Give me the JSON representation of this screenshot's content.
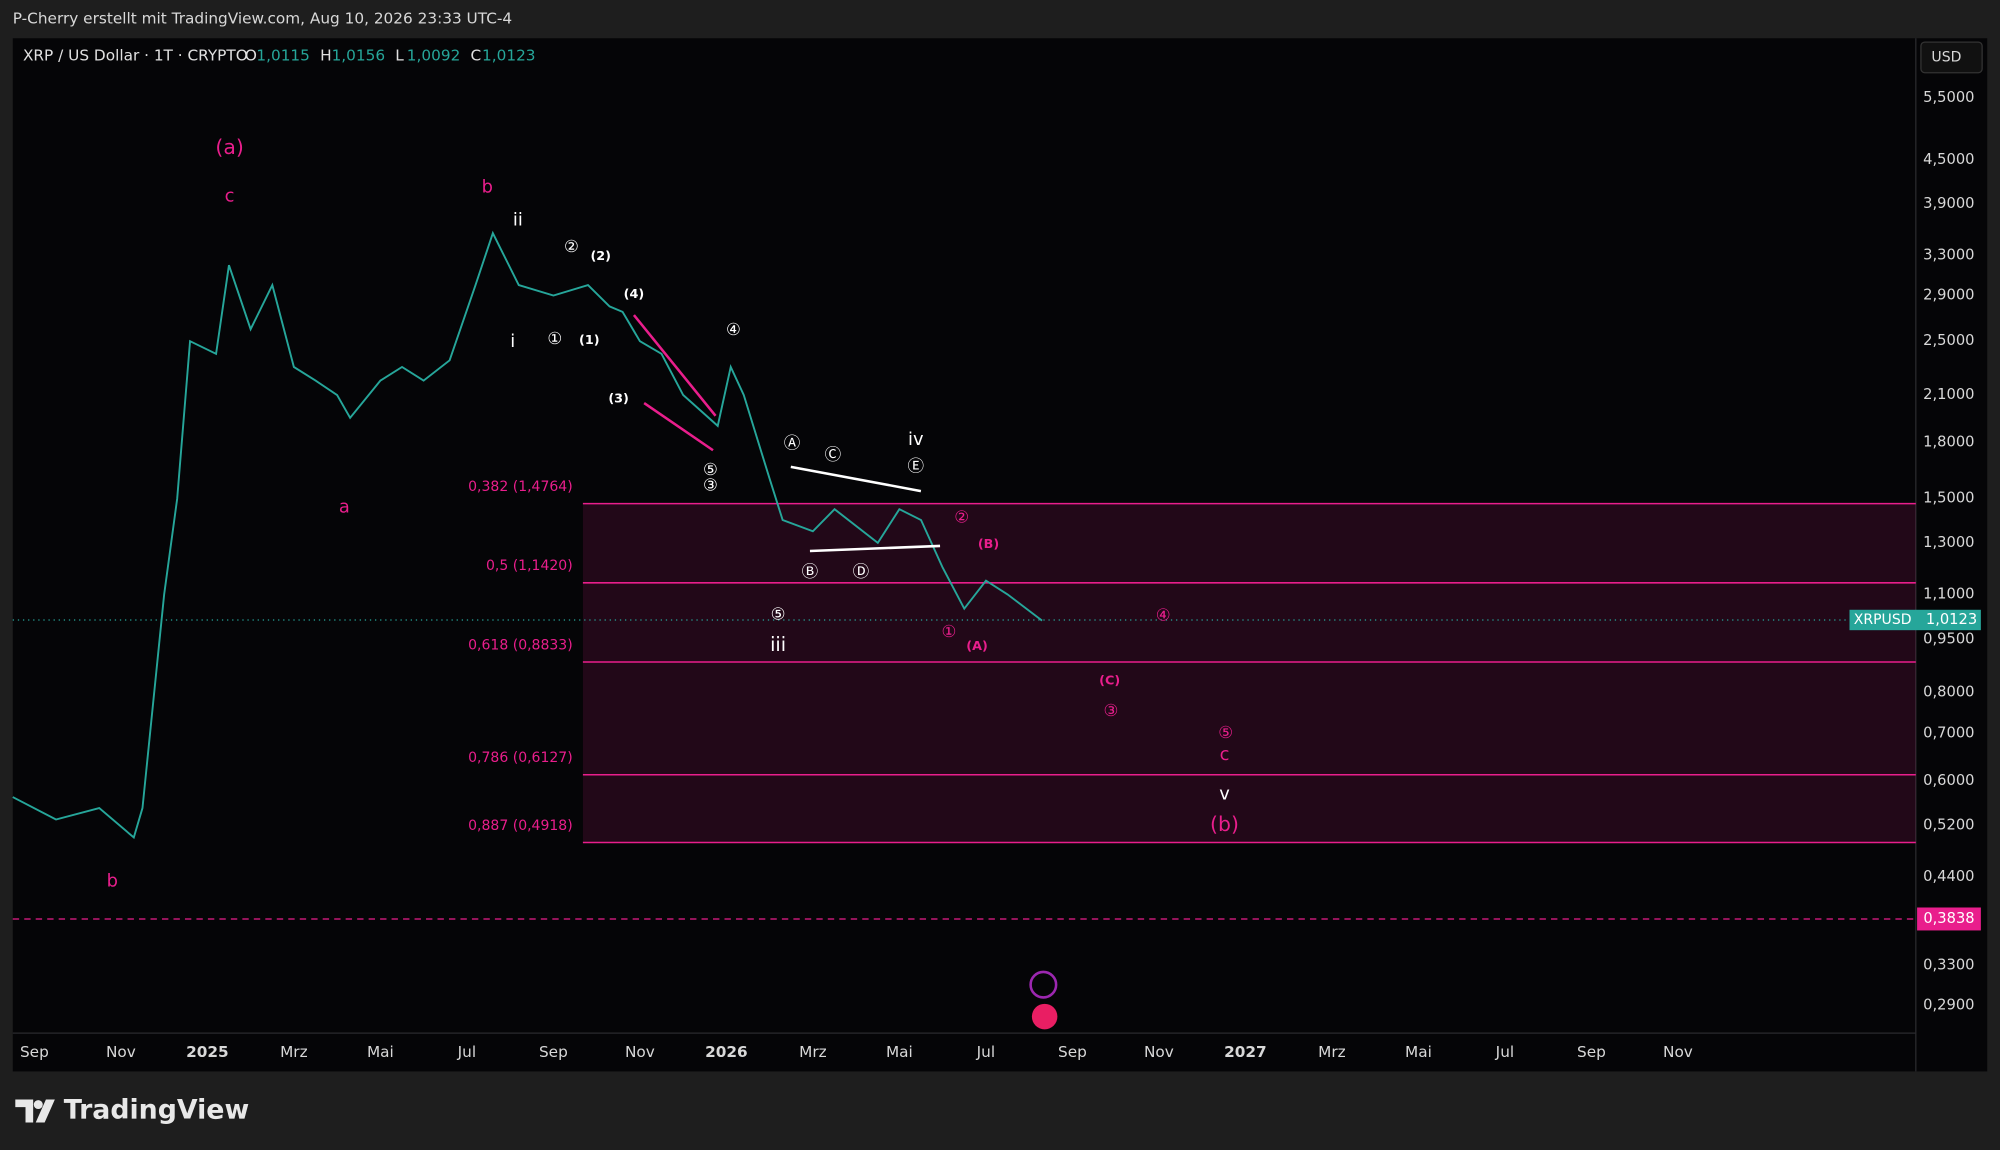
{
  "header": {
    "title": "P-Cherry erstellt mit TradingView.com, Aug 10, 2026 23:33 UTC-4"
  },
  "footer": {
    "brand": "TradingView"
  },
  "chart_data": {
    "type": "line",
    "symbol": "XRP / US Dollar · 1T · CRYPTO",
    "ohlc": [
      {
        "key": "O",
        "value": "1,0115"
      },
      {
        "key": "H",
        "value": "1,0156"
      },
      {
        "key": "L",
        "value": "1,0092"
      },
      {
        "key": "C",
        "value": "1,0123"
      }
    ],
    "currency": "USD",
    "log_scale": true,
    "ylim": [
      0.265,
      6.68
    ],
    "yticks": [
      {
        "value": 5.5,
        "label": "5,5000"
      },
      {
        "value": 4.5,
        "label": "4,5000"
      },
      {
        "value": 3.9,
        "label": "3,9000"
      },
      {
        "value": 3.3,
        "label": "3,3000"
      },
      {
        "value": 2.9,
        "label": "2,9000"
      },
      {
        "value": 2.5,
        "label": "2,5000"
      },
      {
        "value": 2.1,
        "label": "2,1000"
      },
      {
        "value": 1.8,
        "label": "1,8000"
      },
      {
        "value": 1.5,
        "label": "1,5000"
      },
      {
        "value": 1.3,
        "label": "1,3000"
      },
      {
        "value": 1.1,
        "label": "1,1000"
      },
      {
        "value": 0.95,
        "label": "0,9500"
      },
      {
        "value": 0.8,
        "label": "0,8000"
      },
      {
        "value": 0.7,
        "label": "0,7000"
      },
      {
        "value": 0.6,
        "label": "0,6000"
      },
      {
        "value": 0.52,
        "label": "0,5200"
      },
      {
        "value": 0.44,
        "label": "0,4400"
      },
      {
        "value": 0.33,
        "label": "0,3300"
      },
      {
        "value": 0.29,
        "label": "0,2900"
      }
    ],
    "xlim": [
      -0.5,
      43.5
    ],
    "xticks": [
      {
        "value": 0,
        "label": "Sep"
      },
      {
        "value": 2,
        "label": "Nov"
      },
      {
        "value": 4,
        "label": "2025"
      },
      {
        "value": 6,
        "label": "Mrz"
      },
      {
        "value": 8,
        "label": "Mai"
      },
      {
        "value": 10,
        "label": "Jul"
      },
      {
        "value": 12,
        "label": "Sep"
      },
      {
        "value": 14,
        "label": "Nov"
      },
      {
        "value": 16,
        "label": "2026"
      },
      {
        "value": 18,
        "label": "Mrz"
      },
      {
        "value": 20,
        "label": "Mai"
      },
      {
        "value": 22,
        "label": "Jul"
      },
      {
        "value": 24,
        "label": "Sep"
      },
      {
        "value": 26,
        "label": "Nov"
      },
      {
        "value": 28,
        "label": "2027"
      },
      {
        "value": 30,
        "label": "Mrz"
      },
      {
        "value": 32,
        "label": "Mai"
      },
      {
        "value": 34,
        "label": "Jul"
      },
      {
        "value": 36,
        "label": "Sep"
      },
      {
        "value": 38,
        "label": "Nov"
      }
    ],
    "series": [
      {
        "name": "XRPUSD",
        "color": "#26a69a",
        "x": [
          -0.5,
          0.5,
          1.5,
          2.3,
          2.5,
          3.0,
          3.3,
          3.6,
          4.2,
          4.5,
          5.0,
          5.5,
          6.0,
          6.5,
          7.0,
          7.3,
          8.0,
          8.5,
          9.0,
          9.6,
          10.2,
          10.6,
          11.2,
          12.0,
          12.8,
          13.3,
          13.6,
          14.0,
          14.5,
          15.0,
          15.8,
          16.1,
          16.4,
          17.0,
          17.3,
          18.0,
          18.5,
          19.5,
          20.0,
          20.5,
          21.0,
          21.5,
          22.0,
          22.5,
          23.3
        ],
        "values": [
          0.57,
          0.53,
          0.55,
          0.5,
          0.55,
          1.1,
          1.5,
          2.5,
          2.4,
          3.2,
          2.6,
          3.0,
          2.3,
          2.2,
          2.1,
          1.95,
          2.2,
          2.3,
          2.2,
          2.35,
          3.0,
          3.55,
          3.0,
          2.9,
          3.0,
          2.8,
          2.75,
          2.5,
          2.4,
          2.1,
          1.9,
          2.3,
          2.1,
          1.6,
          1.4,
          1.35,
          1.45,
          1.3,
          1.45,
          1.4,
          1.2,
          1.05,
          1.15,
          1.1,
          1.01
        ]
      }
    ],
    "last_price": {
      "value": 1.0123,
      "label": "1,0123",
      "name": "XRPUSD"
    },
    "target_line": {
      "value": 0.3838,
      "label": "0,3838"
    },
    "fib_levels": [
      {
        "value": 1.4764,
        "label": "0,382 (1,4764)"
      },
      {
        "value": 1.142,
        "label": "0,5 (1,1420)"
      },
      {
        "value": 0.8833,
        "label": "0,618 (0,8833)"
      },
      {
        "value": 0.6127,
        "label": "0,786 (0,6127)"
      },
      {
        "value": 0.4918,
        "label": "0,887 (0,4918)"
      }
    ],
    "annotations": [
      "(a)",
      "c",
      "b",
      "a",
      "b",
      "(b)",
      "c",
      "⑤",
      "③",
      "(C)",
      "④",
      "②",
      "(B)",
      "①",
      "(A)",
      "ii",
      "i",
      "②",
      "(2)",
      "①",
      "(1)",
      "(4)",
      "(3)",
      "④",
      "⑤",
      "③",
      "Ⓐ",
      "Ⓒ",
      "iv",
      "Ⓔ",
      "Ⓑ",
      "Ⓓ",
      "⑤",
      "iii",
      "v"
    ]
  }
}
